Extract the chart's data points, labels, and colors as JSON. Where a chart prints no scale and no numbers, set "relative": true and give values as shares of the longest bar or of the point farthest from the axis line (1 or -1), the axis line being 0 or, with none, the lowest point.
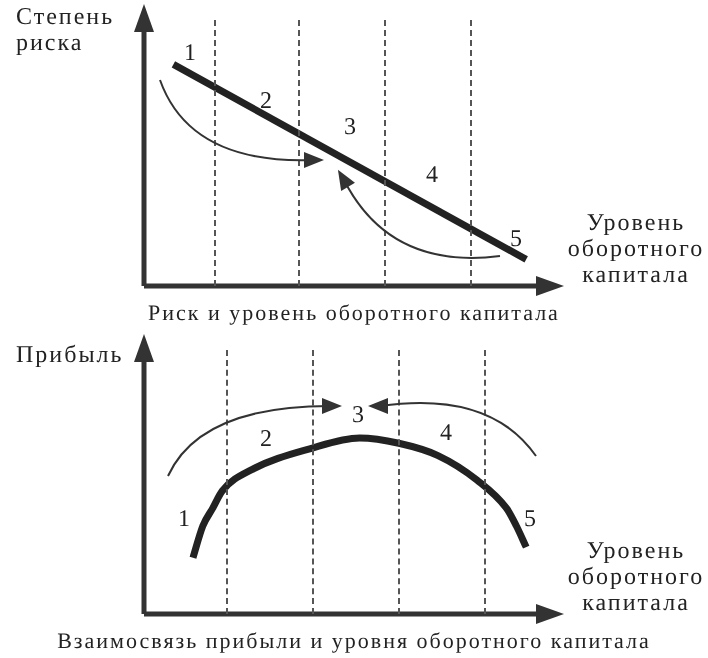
{
  "chart_data": [
    {
      "type": "line",
      "title": "Риск и уровень оборотного капитала",
      "ylabel": "Степень риска",
      "xlabel": "Уровень оборотного капитала",
      "relative": true,
      "color": "#222222",
      "tick_labels": false,
      "legend": false,
      "marker": "none",
      "annotations": [
        "1",
        "2",
        "3",
        "4",
        "5"
      ],
      "categories": [
        null,
        null,
        null,
        null,
        null,
        null,
        null,
        null,
        null,
        null,
        null,
        null,
        null,
        null,
        null,
        null,
        null,
        null,
        null,
        null,
        null,
        null,
        null,
        null,
        null,
        null,
        null,
        null,
        null,
        null,
        null,
        null,
        null,
        null,
        null,
        null,
        null,
        null,
        null,
        null,
        null
      ],
      "values": [
        null,
        null,
        null,
        1,
        null,
        null,
        null,
        null,
        null,
        null,
        null,
        null,
        null,
        null,
        null,
        null,
        null,
        null,
        null,
        null,
        null,
        null,
        null,
        null,
        null,
        null,
        null,
        null,
        null,
        null,
        null,
        null,
        null,
        null,
        null,
        null,
        null,
        null,
        null,
        0.12,
        null
      ]
    },
    {
      "type": "line",
      "title": "Взаимосвязь прибыли и уровня оборотного капитала",
      "ylabel": "Прибыль",
      "xlabel": "Уровень оборотного капитала",
      "relative": true,
      "color": "#222222",
      "tick_labels": false,
      "legend": false,
      "marker": "none",
      "annotations": [
        "1",
        "2",
        "3",
        "4",
        "5"
      ],
      "categories": [
        null,
        null,
        null,
        null,
        null,
        null,
        null,
        null,
        null,
        null,
        null,
        null,
        null,
        null,
        null,
        null,
        null,
        null,
        null,
        null,
        null,
        null,
        null,
        null,
        null,
        null,
        null,
        null,
        null,
        null,
        null,
        null,
        null,
        null,
        null,
        null,
        null,
        null,
        null,
        null,
        null
      ],
      "values": [
        null,
        null,
        null,
        null,
        null,
        0.32,
        0.5,
        0.6,
        0.7,
        null,
        null,
        0.82,
        null,
        null,
        null,
        null,
        null,
        0.94,
        null,
        null,
        null,
        null,
        1,
        null,
        null,
        null,
        0.97,
        null,
        null,
        null,
        0.9,
        null,
        null,
        null,
        0.76,
        null,
        null,
        0.6,
        0.5,
        0.38,
        null
      ]
    }
  ]
}
